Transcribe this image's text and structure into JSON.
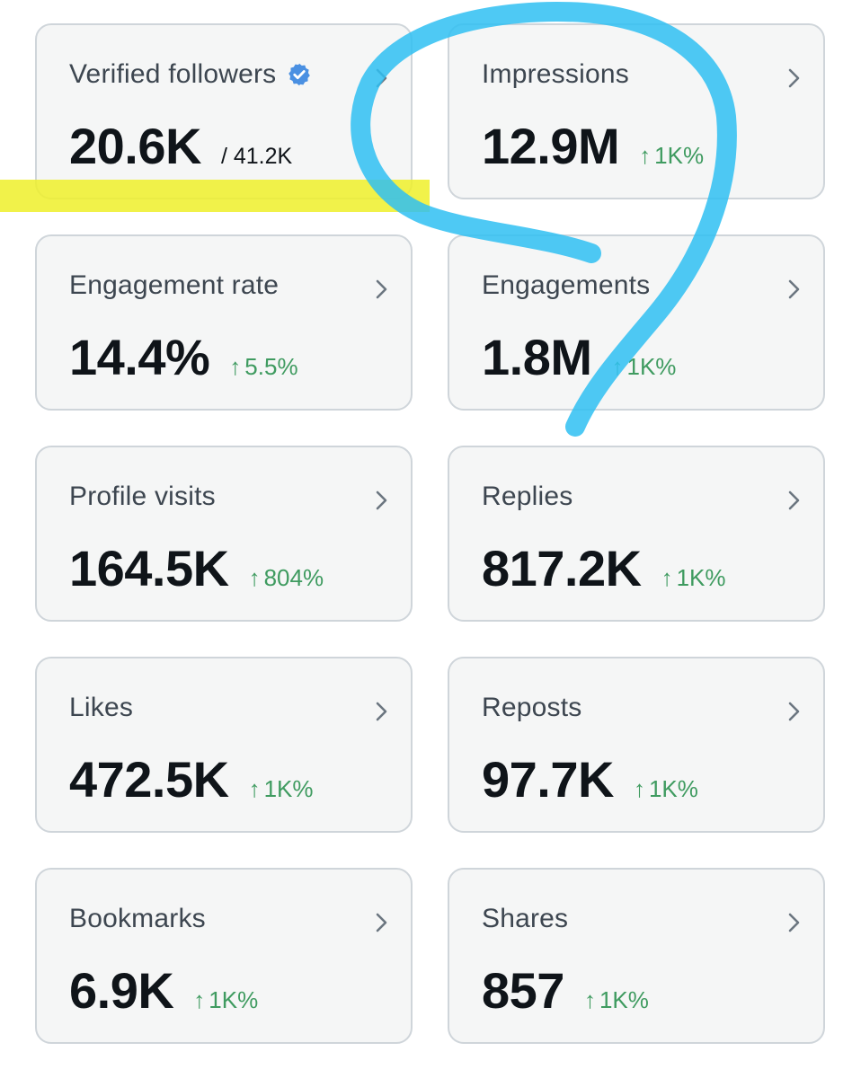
{
  "accent_color": "#3f9b60",
  "verified_color": "#4a90e2",
  "highlight_colors": {
    "yellow": "#eef02a",
    "blue": "#2fc0f2"
  },
  "cards": [
    {
      "title": "Verified followers",
      "value": "20.6K",
      "total": "/ 41.2K",
      "icon": "verified-badge-icon"
    },
    {
      "title": "Impressions",
      "value": "12.9M",
      "delta": "1K%"
    },
    {
      "title": "Engagement rate",
      "value": "14.4%",
      "delta": "5.5%"
    },
    {
      "title": "Engagements",
      "value": "1.8M",
      "delta": "1K%"
    },
    {
      "title": "Profile visits",
      "value": "164.5K",
      "delta": "804%"
    },
    {
      "title": "Replies",
      "value": "817.2K",
      "delta": "1K%"
    },
    {
      "title": "Likes",
      "value": "472.5K",
      "delta": "1K%"
    },
    {
      "title": "Reposts",
      "value": "97.7K",
      "delta": "1K%"
    },
    {
      "title": "Bookmarks",
      "value": "6.9K",
      "delta": "1K%"
    },
    {
      "title": "Shares",
      "value": "857",
      "delta": "1K%"
    }
  ],
  "delta_arrow": "↑"
}
